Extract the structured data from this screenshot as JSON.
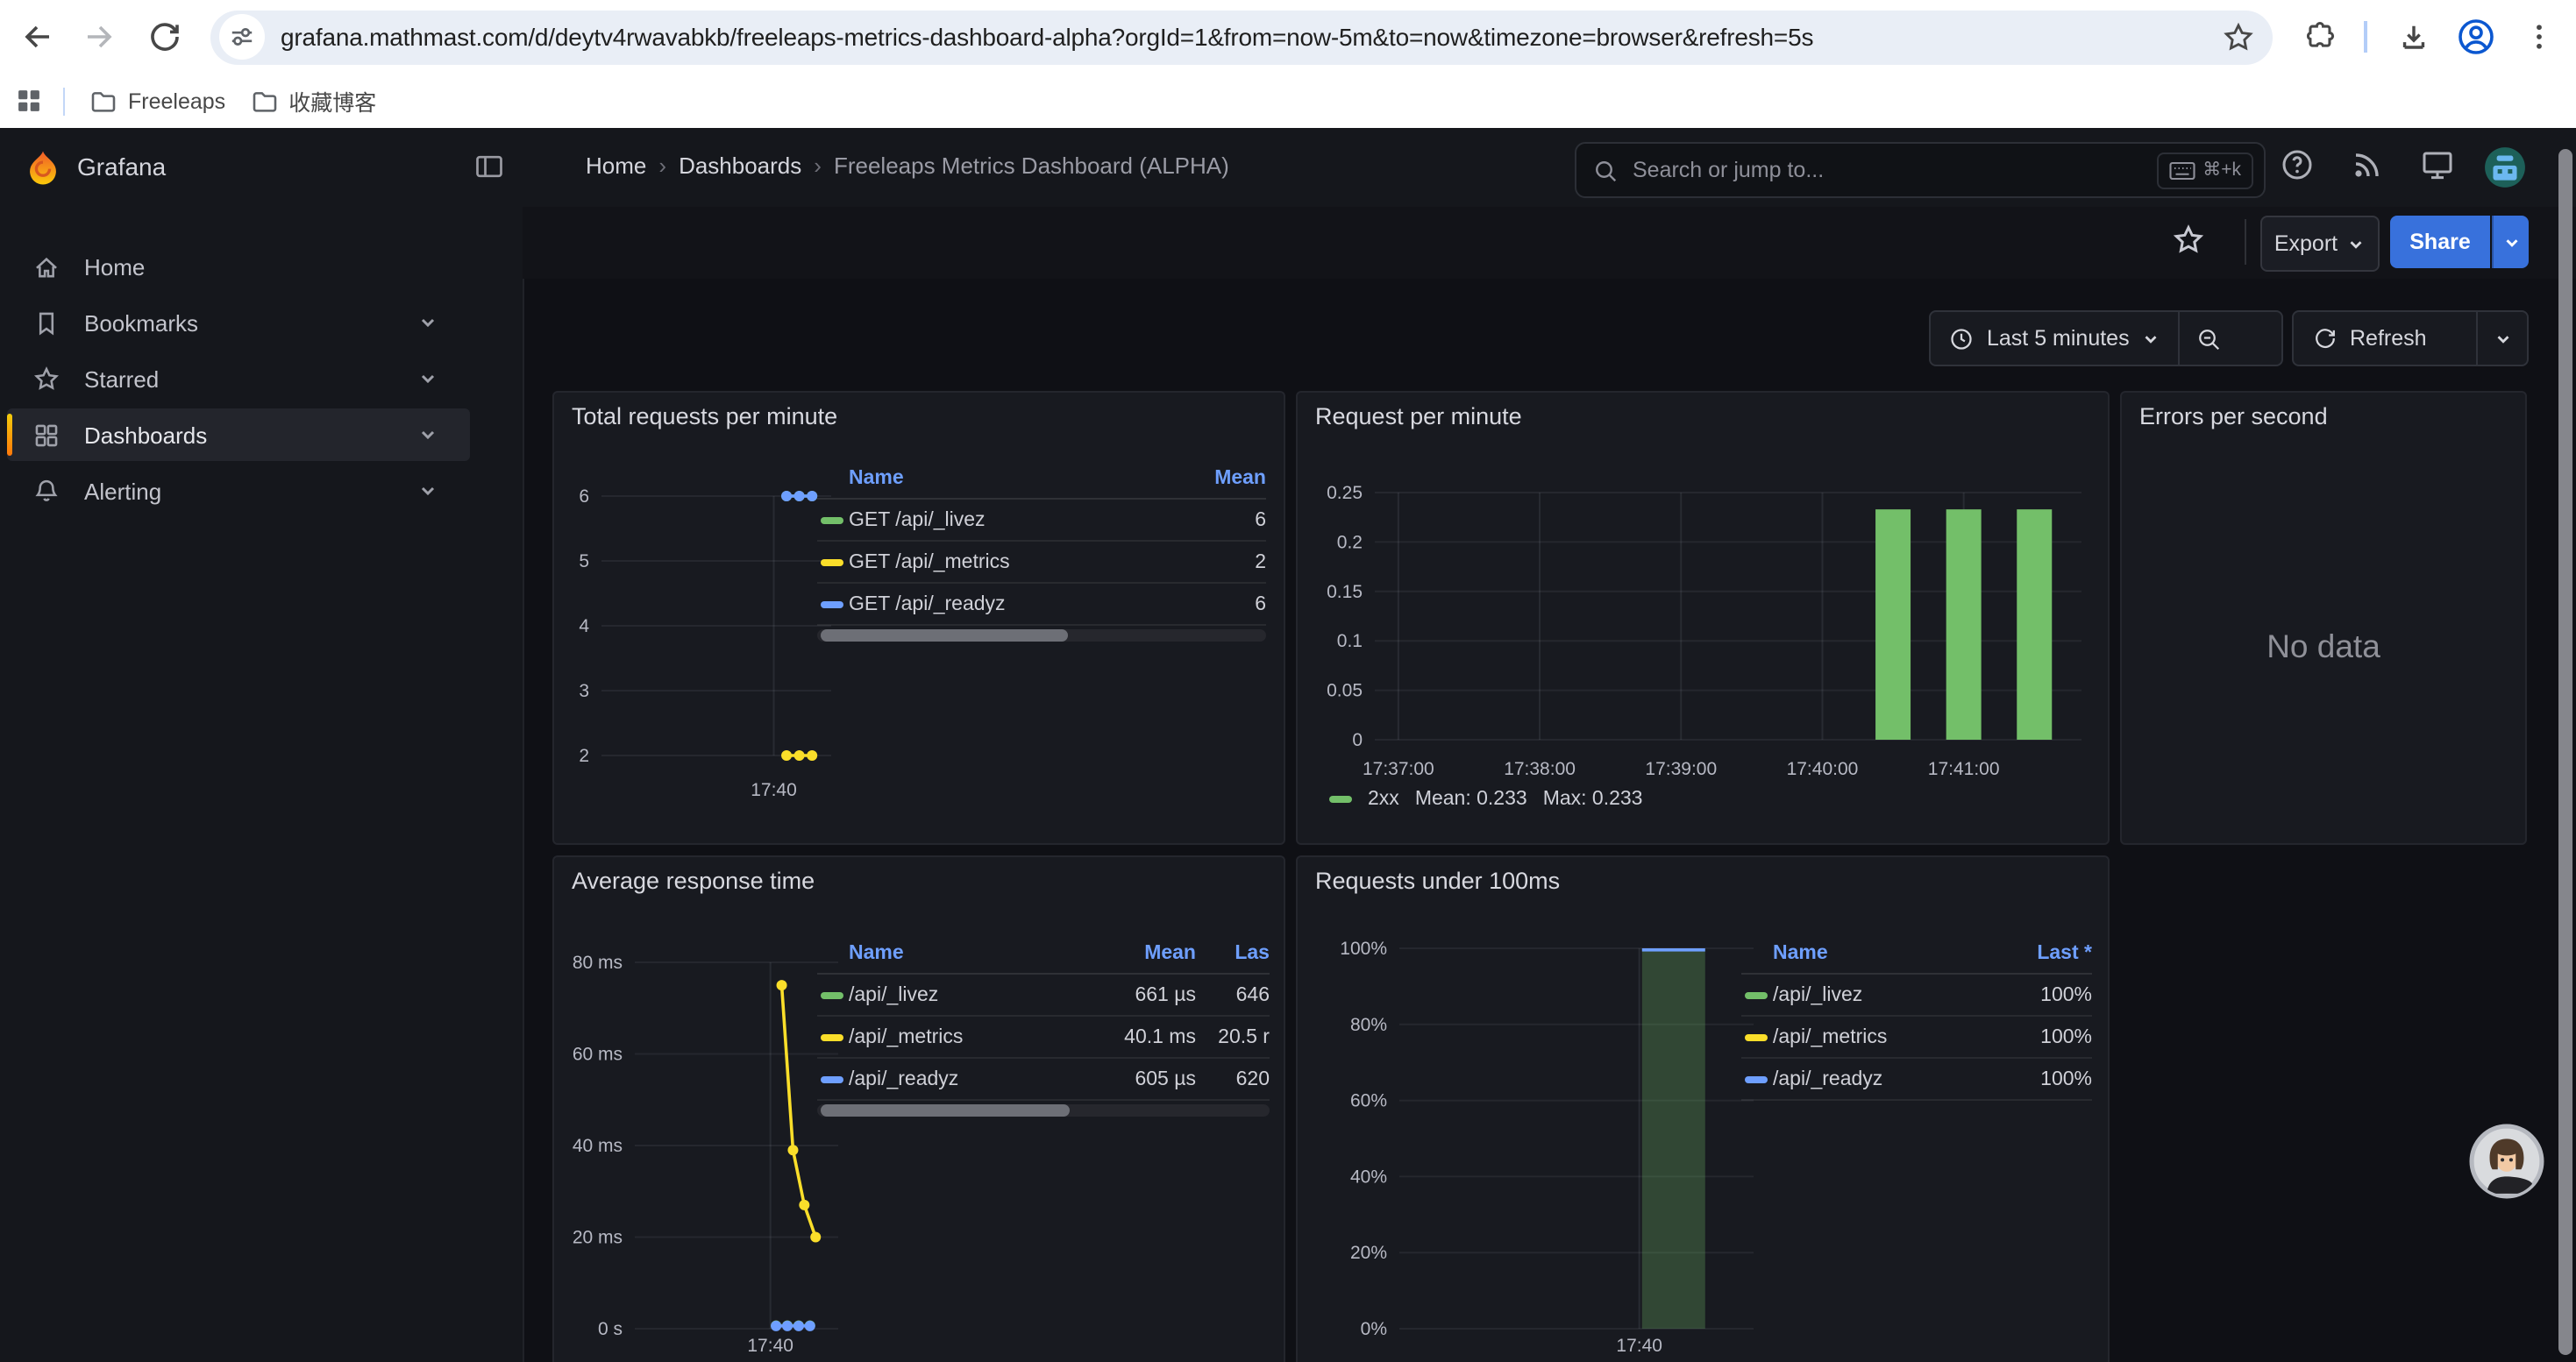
{
  "browser": {
    "url": "grafana.mathmast.com/d/deytv4rwavabkb/freeleaps-metrics-dashboard-alpha?orgId=1&from=now-5m&to=now&timezone=browser&refresh=5s",
    "bookmarks": [
      {
        "label": "Freeleaps"
      },
      {
        "label": "收藏博客"
      }
    ]
  },
  "app": {
    "brand": "Grafana",
    "breadcrumb": [
      "Home",
      "Dashboards",
      "Freeleaps Metrics Dashboard (ALPHA)"
    ],
    "breadcrumb_sep": "›",
    "search": {
      "placeholder": "Search or jump to...",
      "shortcut": "⌘+k"
    },
    "toolbar": {
      "export_label": "Export",
      "share_label": "Share"
    },
    "time": {
      "range_label": "Last 5 minutes",
      "refresh_label": "Refresh"
    },
    "sidebar": [
      {
        "label": "Home",
        "icon": "home-icon",
        "active": false,
        "expandable": false
      },
      {
        "label": "Bookmarks",
        "icon": "bookmark-icon",
        "active": false,
        "expandable": true
      },
      {
        "label": "Starred",
        "icon": "star-icon",
        "active": false,
        "expandable": true
      },
      {
        "label": "Dashboards",
        "icon": "apps-grid-icon",
        "active": true,
        "expandable": true
      },
      {
        "label": "Alerting",
        "icon": "bell-icon",
        "active": false,
        "expandable": true
      }
    ]
  },
  "colors": {
    "green": "#73bf69",
    "yellow": "#fade2a",
    "blue": "#6e9fff",
    "accent_orange": "#ff780a",
    "share_blue": "#3871dc",
    "link_blue": "#6e9fff"
  },
  "chart_data": [
    {
      "type": "line",
      "title": "Total requests per minute",
      "x_domain": [
        "17:35:30",
        "17:41:30"
      ],
      "x_ticks": [
        {
          "label": "17:40",
          "time": "17:40:00"
        }
      ],
      "y_ticks": [
        {
          "label": "6",
          "value": 6
        },
        {
          "label": "5",
          "value": 5
        },
        {
          "label": "4",
          "value": 4
        },
        {
          "label": "3",
          "value": 3
        },
        {
          "label": "2",
          "value": 2
        }
      ],
      "ylim": [
        2,
        6
      ],
      "series": [
        {
          "name": "GET /api/_livez",
          "color": "#73bf69",
          "points": [
            {
              "t": "17:40:20",
              "v": 6
            },
            {
              "t": "17:40:40",
              "v": 6
            },
            {
              "t": "17:41:00",
              "v": 6
            }
          ]
        },
        {
          "name": "GET /api/_metrics",
          "color": "#fade2a",
          "points": [
            {
              "t": "17:40:20",
              "v": 2
            },
            {
              "t": "17:40:40",
              "v": 2
            },
            {
              "t": "17:41:00",
              "v": 2
            }
          ]
        },
        {
          "name": "GET /api/_readyz",
          "color": "#6e9fff",
          "points": [
            {
              "t": "17:40:20",
              "v": 6
            },
            {
              "t": "17:40:40",
              "v": 6
            },
            {
              "t": "17:41:00",
              "v": 6
            }
          ]
        }
      ],
      "legend": {
        "columns": [
          "Name",
          "Mean"
        ],
        "rows": [
          {
            "name": "GET /api/_livez",
            "color": "#73bf69",
            "values": [
              "6"
            ]
          },
          {
            "name": "GET /api/_metrics",
            "color": "#fade2a",
            "values": [
              "2"
            ]
          },
          {
            "name": "GET /api/_readyz",
            "color": "#6e9fff",
            "values": [
              "6"
            ]
          }
        ]
      }
    },
    {
      "type": "bar",
      "title": "Request per minute",
      "x_domain": [
        "17:36:50",
        "17:41:50"
      ],
      "x_ticks": [
        {
          "label": "17:37:00",
          "time": "17:37:00"
        },
        {
          "label": "17:38:00",
          "time": "17:38:00"
        },
        {
          "label": "17:39:00",
          "time": "17:39:00"
        },
        {
          "label": "17:40:00",
          "time": "17:40:00"
        },
        {
          "label": "17:41:00",
          "time": "17:41:00"
        }
      ],
      "y_ticks": [
        {
          "label": "0.25",
          "value": 0.25
        },
        {
          "label": "0.2",
          "value": 0.2
        },
        {
          "label": "0.15",
          "value": 0.15
        },
        {
          "label": "0.1",
          "value": 0.1
        },
        {
          "label": "0.05",
          "value": 0.05
        },
        {
          "label": "0",
          "value": 0
        }
      ],
      "ylim": [
        0,
        0.25
      ],
      "bar_color": "#73bf69",
      "bars": [
        {
          "t": "17:40:30",
          "v": 0.233
        },
        {
          "t": "17:41:00",
          "v": 0.233
        },
        {
          "t": "17:41:30",
          "v": 0.233
        }
      ],
      "legend_line": {
        "series": "2xx",
        "mean_label": "Mean: 0.233",
        "max_label": "Max: 0.233",
        "color": "#73bf69"
      }
    },
    {
      "type": "none",
      "title": "Errors per second",
      "message": "No data"
    },
    {
      "type": "line",
      "title": "Average response time",
      "x_domain": [
        "17:36:00",
        "17:42:00"
      ],
      "x_ticks": [
        {
          "label": "17:40",
          "time": "17:40:00"
        }
      ],
      "y_ticks": [
        {
          "label": "80 ms",
          "value": 80
        },
        {
          "label": "60 ms",
          "value": 60
        },
        {
          "label": "40 ms",
          "value": 40
        },
        {
          "label": "20 ms",
          "value": 20
        },
        {
          "label": "0 s",
          "value": 0
        }
      ],
      "ylim": [
        0,
        80
      ],
      "series": [
        {
          "name": "/api/_livez",
          "color": "#73bf69",
          "points": [
            {
              "t": "17:40:10",
              "v": 0.66
            },
            {
              "t": "17:40:30",
              "v": 0.66
            },
            {
              "t": "17:40:50",
              "v": 0.66
            },
            {
              "t": "17:41:10",
              "v": 0.66
            }
          ]
        },
        {
          "name": "/api/_readyz",
          "color": "#6e9fff",
          "points": [
            {
              "t": "17:40:10",
              "v": 0.6
            },
            {
              "t": "17:40:30",
              "v": 0.6
            },
            {
              "t": "17:40:50",
              "v": 0.6
            },
            {
              "t": "17:41:10",
              "v": 0.6
            }
          ]
        },
        {
          "name": "/api/_metrics",
          "color": "#fade2a",
          "points": [
            {
              "t": "17:40:20",
              "v": 75
            },
            {
              "t": "17:40:40",
              "v": 39
            },
            {
              "t": "17:41:00",
              "v": 27
            },
            {
              "t": "17:41:20",
              "v": 20
            }
          ]
        }
      ],
      "legend": {
        "columns": [
          "Name",
          "Mean",
          "Las"
        ],
        "rows": [
          {
            "name": "/api/_livez",
            "color": "#73bf69",
            "values": [
              "661 µs",
              "646"
            ]
          },
          {
            "name": "/api/_metrics",
            "color": "#fade2a",
            "values": [
              "40.1 ms",
              "20.5 r"
            ]
          },
          {
            "name": "/api/_readyz",
            "color": "#6e9fff",
            "values": [
              "605 µs",
              "620"
            ]
          }
        ]
      }
    },
    {
      "type": "bar",
      "title": "Requests under 100ms",
      "x_domain": [
        "17:36:30",
        "17:41:40"
      ],
      "x_ticks": [
        {
          "label": "17:40",
          "time": "17:40:00"
        }
      ],
      "y_ticks": [
        {
          "label": "100%",
          "value": 100
        },
        {
          "label": "80%",
          "value": 80
        },
        {
          "label": "60%",
          "value": 60
        },
        {
          "label": "40%",
          "value": 40
        },
        {
          "label": "20%",
          "value": 20
        },
        {
          "label": "0%",
          "value": 0
        }
      ],
      "ylim": [
        0,
        100
      ],
      "bar_color": "rgba(115,191,105,0.28)",
      "bar_cap_color": "#6e9fff",
      "bars": [
        {
          "t": "17:40:30",
          "v": 100
        }
      ],
      "legend": {
        "columns": [
          "Name",
          "Last *"
        ],
        "rows": [
          {
            "name": "/api/_livez",
            "color": "#73bf69",
            "values": [
              "100%"
            ]
          },
          {
            "name": "/api/_metrics",
            "color": "#fade2a",
            "values": [
              "100%"
            ]
          },
          {
            "name": "/api/_readyz",
            "color": "#6e9fff",
            "values": [
              "100%"
            ]
          }
        ]
      }
    }
  ]
}
